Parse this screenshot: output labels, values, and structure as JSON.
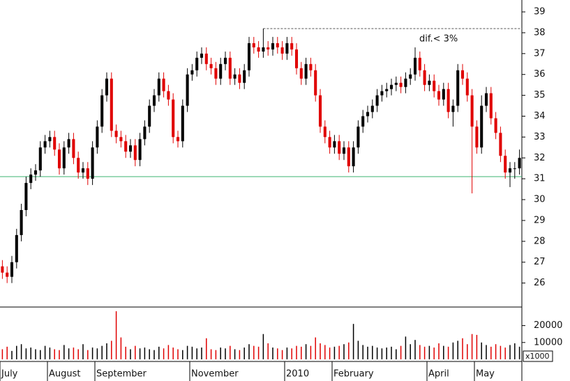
{
  "chart_data": {
    "type": "candlestick",
    "annotation": "dif.< 3%",
    "xlim": [
      0,
      110
    ],
    "xticks": [
      {
        "value": 0,
        "label": "July"
      },
      {
        "value": 10,
        "label": "August"
      },
      {
        "value": 20,
        "label": "September"
      },
      {
        "value": 40,
        "label": "November"
      },
      {
        "value": 60,
        "label": "2010"
      },
      {
        "value": 70,
        "label": "February"
      },
      {
        "value": 90,
        "label": "April"
      },
      {
        "value": 100,
        "label": "May"
      }
    ],
    "ylim": [
      24.85,
      39.57
    ],
    "yticks": [
      26,
      27,
      28,
      29,
      30,
      31,
      32,
      33,
      34,
      35,
      36,
      37,
      38,
      39
    ],
    "up_color": "#000000",
    "down_color": "#e00000",
    "hlines": [
      {
        "value": 38.2,
        "color": "#555555",
        "style": "dashed"
      },
      {
        "value": 31.1,
        "color": "#3cb371",
        "style": "solid"
      }
    ],
    "open": [
      26.8,
      26.5,
      26.3,
      27,
      28.3,
      29.5,
      30.8,
      31.2,
      31.4,
      32.5,
      32.8,
      33,
      32.4,
      31.5,
      32.5,
      32.9,
      32,
      31.3,
      31.5,
      31,
      32.5,
      33.5,
      35,
      35.8,
      33.3,
      33,
      32.8,
      32.3,
      32.6,
      31.9,
      32.9,
      33.5,
      34.5,
      35,
      35.8,
      35.2,
      34.8,
      33,
      32.8,
      34.5,
      36,
      36.2,
      36.8,
      37,
      36.5,
      36.3,
      35.8,
      36.5,
      36.8,
      35.8,
      36,
      35.6,
      36.2,
      37.5,
      37.3,
      37.1,
      37.3,
      37.2,
      37.5,
      37.3,
      37,
      37.5,
      37.2,
      36.3,
      35.8,
      36.5,
      36.2,
      35,
      33.5,
      33,
      32.5,
      32.8,
      32.2,
      32.5,
      31.6,
      32.5,
      33.5,
      34,
      34.2,
      34.5,
      35,
      35.2,
      35.3,
      35.5,
      35.6,
      35.4,
      35.8,
      36,
      36.8,
      36.2,
      35.5,
      35.7,
      35.2,
      34.8,
      35.3,
      34.2,
      34.5,
      36.2,
      35.8,
      35,
      33.5,
      32.5,
      34.5,
      35.1,
      33.9,
      33.2,
      32.1,
      31.3,
      31.5,
      31.5
    ],
    "high": [
      27.1,
      26.8,
      27.3,
      28.6,
      29.8,
      31.1,
      31.5,
      31.7,
      32.8,
      33.1,
      33.3,
      33.3,
      32.7,
      32.8,
      33.2,
      33.2,
      32.3,
      31.8,
      31.8,
      32.8,
      33.8,
      35.3,
      36.1,
      36.1,
      33.6,
      33.3,
      33.1,
      32.9,
      32.9,
      33.2,
      33.8,
      34.8,
      35.3,
      36.1,
      36.1,
      35.5,
      35.1,
      33.3,
      34.8,
      36.3,
      36.5,
      37.1,
      37.3,
      37.3,
      36.8,
      36.6,
      36.8,
      37.1,
      37.1,
      36.3,
      36.3,
      36.5,
      37.8,
      37.8,
      37.6,
      38.2,
      37.6,
      37.8,
      37.8,
      37.6,
      37.8,
      37.8,
      37.5,
      36.6,
      36.8,
      36.8,
      36.5,
      35.3,
      33.8,
      33.3,
      33.1,
      33.1,
      32.8,
      32.8,
      32.8,
      33.8,
      34.3,
      34.5,
      34.8,
      35.3,
      35.5,
      35.6,
      35.8,
      35.9,
      35.9,
      36.1,
      36.3,
      37.3,
      37.1,
      36.5,
      36,
      36,
      35.5,
      35.6,
      35.6,
      34.8,
      36.5,
      36.5,
      36.1,
      35.3,
      33.8,
      35,
      35.4,
      35.4,
      34.2,
      33.5,
      32.4,
      31.8,
      31.8,
      32.4
    ],
    "low": [
      26.2,
      26,
      26,
      26.7,
      28,
      29.2,
      30.5,
      30.9,
      31.1,
      32.2,
      32.5,
      32.1,
      31.2,
      31.2,
      32.2,
      31.7,
      31,
      31,
      30.7,
      30.7,
      32.2,
      33.2,
      34.7,
      33,
      32.7,
      32.5,
      32,
      32,
      31.6,
      31.6,
      32.6,
      33.2,
      34.2,
      34.7,
      34.9,
      34.5,
      32.7,
      32.5,
      32.5,
      34.2,
      35.7,
      35.9,
      36.5,
      36.2,
      36,
      35.5,
      35.5,
      36.2,
      35.5,
      35.5,
      35.3,
      35.3,
      35.9,
      37,
      36.8,
      36.8,
      36.9,
      36.9,
      37,
      36.7,
      36.7,
      36.9,
      36,
      35.5,
      35.5,
      35.9,
      34.7,
      33.2,
      32.7,
      32.2,
      32.2,
      31.9,
      31.9,
      31.3,
      31.3,
      32.2,
      33.2,
      33.7,
      33.9,
      34.2,
      34.7,
      34.9,
      35,
      35.2,
      35.1,
      35.1,
      35.5,
      35.7,
      35.9,
      35.2,
      35.2,
      34.9,
      34.5,
      34.5,
      33.9,
      33.5,
      34.2,
      35.5,
      34.7,
      30.3,
      32.2,
      32.2,
      34.2,
      33.6,
      32.9,
      31.8,
      31,
      30.6,
      31,
      31.2
    ],
    "close": [
      26.5,
      26.3,
      27,
      28.3,
      29.5,
      30.8,
      31.2,
      31.4,
      32.5,
      32.8,
      33,
      32.4,
      31.5,
      32.5,
      32.9,
      32,
      31.3,
      31.5,
      31,
      32.5,
      33.5,
      35,
      35.8,
      33.3,
      33,
      32.8,
      32.3,
      32.6,
      31.9,
      32.9,
      33.5,
      34.5,
      35,
      35.8,
      35.2,
      34.8,
      33,
      32.8,
      34.5,
      36,
      36.2,
      36.8,
      37,
      36.5,
      36.3,
      35.8,
      36.5,
      36.8,
      35.8,
      36,
      35.6,
      36.2,
      37.5,
      37.3,
      37.1,
      37.3,
      37.2,
      37.5,
      37.3,
      37,
      37.5,
      37.2,
      36.3,
      35.8,
      36.5,
      36.2,
      35,
      33.5,
      33,
      32.5,
      32.8,
      32.2,
      32.5,
      31.6,
      32.5,
      33.5,
      34,
      34.2,
      34.5,
      35,
      35.2,
      35.3,
      35.5,
      35.6,
      35.4,
      35.8,
      36,
      36.8,
      36.2,
      35.5,
      35.7,
      35.2,
      34.8,
      35.3,
      34.2,
      34.5,
      36.2,
      35.8,
      35,
      33.5,
      32.5,
      34.5,
      35.1,
      33.9,
      33.2,
      32.1,
      31.3,
      31.5,
      31.5,
      32
    ],
    "volume_ylim": [
      0,
      31000
    ],
    "volume_yticks": [
      10000,
      20000
    ],
    "volume_unit": "x1000",
    "volume": [
      6000,
      7500,
      5000,
      8000,
      9000,
      6500,
      7000,
      6000,
      5500,
      8000,
      7000,
      6000,
      5500,
      8500,
      6500,
      7000,
      6000,
      9000,
      5500,
      7000,
      6500,
      8000,
      9500,
      11000,
      28500,
      13000,
      7500,
      6000,
      8000,
      6500,
      7000,
      6000,
      5500,
      7500,
      6500,
      8500,
      7000,
      6000,
      5500,
      8000,
      7500,
      6500,
      7000,
      12500,
      6000,
      5500,
      7000,
      6500,
      8000,
      6000,
      5500,
      7000,
      9000,
      8000,
      7500,
      15000,
      9500,
      7000,
      6500,
      5500,
      7000,
      6500,
      8000,
      7500,
      9000,
      8000,
      13000,
      9500,
      8500,
      7000,
      7500,
      8000,
      9000,
      10000,
      21000,
      11000,
      8500,
      7500,
      8000,
      7000,
      6500,
      7000,
      7500,
      6000,
      8000,
      13500,
      9000,
      11500,
      8500,
      7500,
      8000,
      7000,
      9500,
      8000,
      7500,
      10000,
      11000,
      12500,
      9000,
      15000,
      14500,
      10000,
      8500,
      7500,
      9000,
      8000,
      7000,
      8500,
      9500,
      7500
    ]
  }
}
